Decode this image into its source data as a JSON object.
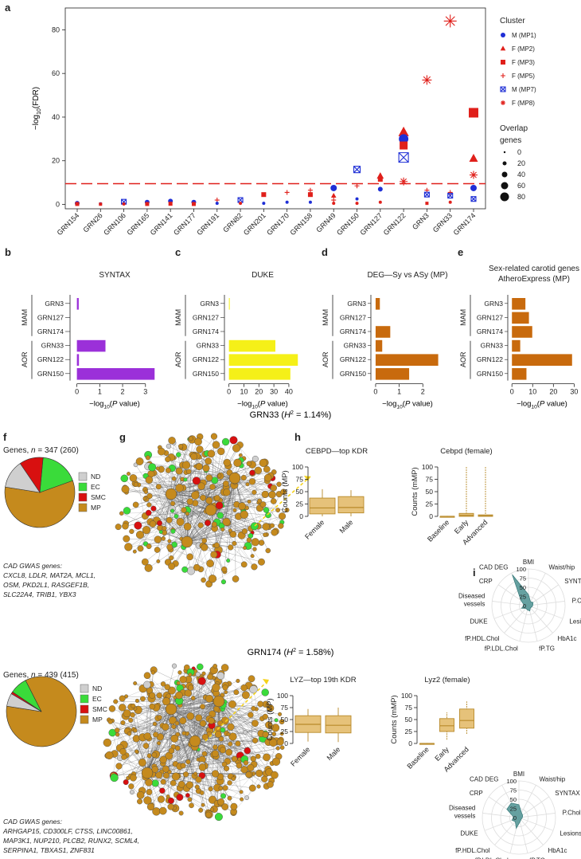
{
  "panel_labels": {
    "a": "a",
    "b": "b",
    "c": "c",
    "d": "d",
    "e": "e",
    "f": "f",
    "g": "g",
    "h": "h",
    "i": "i"
  },
  "colors": {
    "blue": "#1f2fd6",
    "red": "#e0201b",
    "purple": "#9b30d9",
    "yellow": "#f5f018",
    "orange": "#c86a0d",
    "mp": "#c58a1d",
    "ec": "#3adb3a",
    "smc": "#d81010",
    "nd": "#cfcfcf",
    "box": "#e6c27a",
    "boxline": "#b88a2a",
    "teal": "#5e9c9c",
    "grid": "#dddddd"
  },
  "chart_data": [
    {
      "type": "scatter",
      "panel": "a",
      "ylabel": "−log10(FDR)",
      "ylim": [
        -2,
        90
      ],
      "yticks": [
        0,
        20,
        40,
        60,
        80
      ],
      "threshold": 9.5,
      "categories": [
        "GRN154",
        "GRN26",
        "GRN106",
        "GRN165",
        "GRN141",
        "GRN177",
        "GRN191",
        "GRN82",
        "GRN201",
        "GRN170",
        "GRN158",
        "GRN49",
        "GRN150",
        "GRN127",
        "GRN122",
        "GRN3",
        "GRN33",
        "GRN174"
      ],
      "legend_title": "Cluster",
      "legend": [
        {
          "label": "M (MP1)",
          "shape": "circle",
          "color": "blue"
        },
        {
          "label": "F (MP2)",
          "shape": "triangle",
          "color": "red"
        },
        {
          "label": "F (MP3)",
          "shape": "square",
          "color": "red"
        },
        {
          "label": "F (MP5)",
          "shape": "plus",
          "color": "red"
        },
        {
          "label": "M (MP7)",
          "shape": "xsquare",
          "color": "blue"
        },
        {
          "label": "F (MP8)",
          "shape": "asterisk",
          "color": "red"
        }
      ],
      "size_legend_title": "Overlap genes",
      "size_legend": [
        {
          "label": "0",
          "r": 1.2
        },
        {
          "label": "20",
          "r": 2.5
        },
        {
          "label": "40",
          "r": 3.5
        },
        {
          "label": "60",
          "r": 4.5
        },
        {
          "label": "80",
          "r": 5.5
        }
      ],
      "points": [
        {
          "cat": 0,
          "shape": "circle",
          "color": "blue",
          "y": 0.5,
          "r": 3
        },
        {
          "cat": 0,
          "shape": "square",
          "color": "red",
          "y": 0.2,
          "r": 2.5
        },
        {
          "cat": 1,
          "shape": "circle",
          "color": "blue",
          "y": 0.3,
          "r": 2
        },
        {
          "cat": 1,
          "shape": "square",
          "color": "red",
          "y": 0.1,
          "r": 2
        },
        {
          "cat": 2,
          "shape": "xsquare",
          "color": "blue",
          "y": 1.2,
          "r": 3
        },
        {
          "cat": 2,
          "shape": "circle",
          "color": "red",
          "y": 0.2,
          "r": 2
        },
        {
          "cat": 3,
          "shape": "circle",
          "color": "blue",
          "y": 1.0,
          "r": 3
        },
        {
          "cat": 3,
          "shape": "square",
          "color": "red",
          "y": 0.2,
          "r": 2.5
        },
        {
          "cat": 4,
          "shape": "circle",
          "color": "blue",
          "y": 1.5,
          "r": 3
        },
        {
          "cat": 4,
          "shape": "square",
          "color": "red",
          "y": 0.3,
          "r": 2.5
        },
        {
          "cat": 5,
          "shape": "circle",
          "color": "blue",
          "y": 1.0,
          "r": 3
        },
        {
          "cat": 5,
          "shape": "square",
          "color": "red",
          "y": 0.2,
          "r": 2.5
        },
        {
          "cat": 6,
          "shape": "plus",
          "color": "red",
          "y": 2.0,
          "r": 3
        },
        {
          "cat": 6,
          "shape": "circle",
          "color": "blue",
          "y": 0.5,
          "r": 2
        },
        {
          "cat": 7,
          "shape": "xsquare",
          "color": "blue",
          "y": 2.0,
          "r": 3
        },
        {
          "cat": 7,
          "shape": "circle",
          "color": "red",
          "y": 0.5,
          "r": 2
        },
        {
          "cat": 8,
          "shape": "square",
          "color": "red",
          "y": 4.5,
          "r": 3
        },
        {
          "cat": 8,
          "shape": "circle",
          "color": "blue",
          "y": 0.5,
          "r": 2
        },
        {
          "cat": 9,
          "shape": "plus",
          "color": "red",
          "y": 5.5,
          "r": 3
        },
        {
          "cat": 9,
          "shape": "circle",
          "color": "blue",
          "y": 1.0,
          "r": 2
        },
        {
          "cat": 10,
          "shape": "plus",
          "color": "red",
          "y": 6.5,
          "r": 3
        },
        {
          "cat": 10,
          "shape": "square",
          "color": "red",
          "y": 4.5,
          "r": 3
        },
        {
          "cat": 10,
          "shape": "circle",
          "color": "blue",
          "y": 1.0,
          "r": 2
        },
        {
          "cat": 11,
          "shape": "circle",
          "color": "blue",
          "y": 7.5,
          "r": 4
        },
        {
          "cat": 11,
          "shape": "triangle",
          "color": "red",
          "y": 4.0,
          "r": 3
        },
        {
          "cat": 11,
          "shape": "plus",
          "color": "red",
          "y": 2.0,
          "r": 3
        },
        {
          "cat": 11,
          "shape": "circle",
          "color": "red",
          "y": 0.5,
          "r": 2
        },
        {
          "cat": 12,
          "shape": "xsquare",
          "color": "blue",
          "y": 16.0,
          "r": 4
        },
        {
          "cat": 12,
          "shape": "plus",
          "color": "red",
          "y": 8.5,
          "r": 3
        },
        {
          "cat": 12,
          "shape": "circle",
          "color": "blue",
          "y": 2.5,
          "r": 2
        },
        {
          "cat": 12,
          "shape": "circle",
          "color": "red",
          "y": 0.5,
          "r": 2
        },
        {
          "cat": 13,
          "shape": "triangle",
          "color": "red",
          "y": 13.0,
          "r": 4
        },
        {
          "cat": 13,
          "shape": "square",
          "color": "red",
          "y": 11.5,
          "r": 3
        },
        {
          "cat": 13,
          "shape": "circle",
          "color": "blue",
          "y": 7.0,
          "r": 3
        },
        {
          "cat": 13,
          "shape": "circle",
          "color": "red",
          "y": 1.0,
          "r": 2
        },
        {
          "cat": 14,
          "shape": "triangle",
          "color": "red",
          "y": 33.0,
          "r": 6
        },
        {
          "cat": 14,
          "shape": "circle",
          "color": "blue",
          "y": 30.0,
          "r": 6
        },
        {
          "cat": 14,
          "shape": "square",
          "color": "red",
          "y": 27.0,
          "r": 5
        },
        {
          "cat": 14,
          "shape": "xsquare",
          "color": "blue",
          "y": 21.5,
          "r": 6
        },
        {
          "cat": 14,
          "shape": "asterisk",
          "color": "red",
          "y": 10.5,
          "r": 5
        },
        {
          "cat": 15,
          "shape": "asterisk",
          "color": "red",
          "y": 57.0,
          "r": 6
        },
        {
          "cat": 15,
          "shape": "plus",
          "color": "red",
          "y": 6.5,
          "r": 3
        },
        {
          "cat": 15,
          "shape": "xsquare",
          "color": "blue",
          "y": 4.5,
          "r": 3
        },
        {
          "cat": 15,
          "shape": "square",
          "color": "red",
          "y": 0.5,
          "r": 2
        },
        {
          "cat": 16,
          "shape": "asterisk",
          "color": "red",
          "y": 84.0,
          "r": 8
        },
        {
          "cat": 16,
          "shape": "plus",
          "color": "red",
          "y": 5.5,
          "r": 3
        },
        {
          "cat": 16,
          "shape": "xsquare",
          "color": "blue",
          "y": 4.0,
          "r": 3
        },
        {
          "cat": 16,
          "shape": "circle",
          "color": "red",
          "y": 1.0,
          "r": 2
        },
        {
          "cat": 17,
          "shape": "square",
          "color": "red",
          "y": 42.0,
          "r": 6
        },
        {
          "cat": 17,
          "shape": "triangle",
          "color": "red",
          "y": 21.0,
          "r": 5
        },
        {
          "cat": 17,
          "shape": "asterisk",
          "color": "red",
          "y": 13.5,
          "r": 5
        },
        {
          "cat": 17,
          "shape": "circle",
          "color": "blue",
          "y": 7.5,
          "r": 4
        },
        {
          "cat": 17,
          "shape": "xsquare",
          "color": "blue",
          "y": 2.5,
          "r": 3
        }
      ]
    },
    {
      "type": "bar",
      "panel": "b",
      "title": "SYNTAX",
      "color": "purple",
      "xlabel": "−log10(P value)",
      "xlim": [
        -0.3,
        3.6
      ],
      "xticks": [
        0,
        1,
        2,
        3
      ],
      "values": [
        0.08,
        0,
        0,
        1.25,
        0.09,
        3.4
      ]
    },
    {
      "type": "bar",
      "panel": "c",
      "title": "DUKE",
      "color": "yellow",
      "xlabel": "−log10(P value)",
      "xlim": [
        -3,
        48
      ],
      "xticks": [
        0,
        10,
        20,
        30,
        40
      ],
      "values": [
        0.4,
        0,
        0,
        31,
        46,
        41
      ]
    },
    {
      "type": "bar",
      "panel": "d",
      "title": "DEG—Sy vs ASy (MP)",
      "color": "orange",
      "xlabel": "−log10(P value)",
      "xlim": [
        -0.2,
        2.9
      ],
      "xticks": [
        0,
        1,
        2
      ],
      "values": [
        0.18,
        0,
        0.62,
        0.28,
        2.65,
        1.42
      ]
    },
    {
      "type": "bar",
      "panel": "e",
      "title_lines": [
        "Sex-related carotid genes",
        "AtheroExpress (MP)"
      ],
      "color": "orange",
      "xlabel": "−log10(P value)",
      "xlim": [
        -2,
        31
      ],
      "xticks": [
        0,
        10,
        20,
        30
      ],
      "values": [
        6.5,
        8.2,
        9.8,
        4.0,
        29,
        7.0
      ]
    },
    {
      "type": "pie",
      "panel": "f-top",
      "title": "Genes, n = 347 (260)",
      "slices": [
        {
          "label": "MP",
          "value": 58
        },
        {
          "label": "EC",
          "value": 18
        },
        {
          "label": "SMC",
          "value": 11
        },
        {
          "label": "ND",
          "value": 13
        }
      ]
    },
    {
      "type": "pie",
      "panel": "f-bottom",
      "title": "Genes, n = 439 (415)",
      "slices": [
        {
          "label": "MP",
          "value": 85
        },
        {
          "label": "EC",
          "value": 8
        },
        {
          "label": "SMC",
          "value": 1
        },
        {
          "label": "ND",
          "value": 6
        }
      ]
    },
    {
      "type": "box",
      "panel": "h1",
      "title": "CEBPD—top KDR",
      "ylabel": "Counts (MP)",
      "ylim": [
        0,
        100
      ],
      "yticks": [
        0,
        25,
        50,
        75,
        100
      ],
      "categories": [
        "Female",
        "Male"
      ],
      "boxes": [
        {
          "min": 0,
          "q1": 5,
          "median": 17,
          "q3": 37,
          "max": 55
        },
        {
          "min": 0,
          "q1": 7,
          "median": 18,
          "q3": 40,
          "max": 53
        }
      ]
    },
    {
      "type": "box",
      "panel": "h2",
      "title": "Cebpd (female)",
      "ylabel": "Counts (mMP)",
      "ylim": [
        0,
        100
      ],
      "yticks": [
        0,
        25,
        50,
        75,
        100
      ],
      "categories": [
        "Baseline",
        "Early",
        "Advanced"
      ],
      "boxes": [
        {
          "min": 0,
          "q1": 0,
          "median": 0,
          "q3": 0,
          "max": 1
        },
        {
          "min": 0,
          "q1": 0,
          "median": 2,
          "q3": 6,
          "max": 100
        },
        {
          "min": 0,
          "q1": 0,
          "median": 1,
          "q3": 3,
          "max": 100
        }
      ]
    },
    {
      "type": "box",
      "panel": "h3",
      "title": "LYZ—top 19th KDR",
      "ylabel": "Counts (MP)",
      "ylim": [
        0,
        100
      ],
      "yticks": [
        0,
        25,
        50,
        75,
        100
      ],
      "categories": [
        "Female",
        "Male"
      ],
      "boxes": [
        {
          "min": 4,
          "q1": 23,
          "median": 40,
          "q3": 58,
          "max": 72
        },
        {
          "min": 3,
          "q1": 22,
          "median": 38,
          "q3": 58,
          "max": 75
        }
      ]
    },
    {
      "type": "box",
      "panel": "h4",
      "title": "Lyz2 (female)",
      "ylabel": "Counts (mMP)",
      "ylim": [
        0,
        100
      ],
      "yticks": [
        0,
        25,
        50,
        75,
        100
      ],
      "categories": [
        "Baseline",
        "Early",
        "Advanced"
      ],
      "boxes": [
        {
          "min": 0,
          "q1": 0,
          "median": 0,
          "q3": 0,
          "max": 1
        },
        {
          "min": 8,
          "q1": 25,
          "median": 37,
          "q3": 52,
          "max": 65
        },
        {
          "min": 20,
          "q1": 32,
          "median": 48,
          "q3": 72,
          "max": 88
        }
      ]
    },
    {
      "type": "radar",
      "panel": "i1",
      "axes": [
        "BMI",
        "Waist/hip",
        "SYNTAX",
        "P.Chol",
        "Lesions",
        "HbA1c",
        "fP.TG",
        "fP.LDL.Chol",
        "fP.HDL.Chol",
        "DUKE",
        "Diseased vessels",
        "CRP",
        "CAD DEG"
      ],
      "ticks": [
        "0",
        "25",
        "50",
        "75",
        "100"
      ],
      "values": [
        30,
        12,
        15,
        12,
        10,
        8,
        15,
        12,
        10,
        20,
        12,
        25,
        95
      ]
    },
    {
      "type": "radar",
      "panel": "i2",
      "axes": [
        "BMI",
        "Waist/hip",
        "SYNTAX",
        "P.Chol",
        "Lesions",
        "HbA1c",
        "fP.TG",
        "fP.LDL.Chol",
        "fP.HDL.Chol",
        "DUKE",
        "Diseased vessels",
        "CRP",
        "CAD DEG"
      ],
      "ticks": [
        "0",
        "25",
        "50",
        "75",
        "100"
      ],
      "values": [
        35,
        15,
        12,
        10,
        8,
        8,
        12,
        30,
        15,
        20,
        15,
        40,
        45
      ]
    }
  ],
  "bar_rows": [
    "GRN3",
    "GRN127",
    "GRN174",
    "GRN33",
    "GRN122",
    "GRN150"
  ],
  "bar_groups": [
    "MAM",
    "AOR"
  ],
  "pie_legend": [
    "ND",
    "EC",
    "SMC",
    "MP"
  ],
  "grn33_title_pre": "GRN33 (",
  "grn33_h": "H",
  "grn33_h_sup": "2",
  "grn33_title_post": " = 1.14%)",
  "grn174_title_pre": "GRN174 (",
  "grn174_h": "H",
  "grn174_h_sup": "2",
  "grn174_title_post": " = 1.58%)",
  "gwas_top_title": "CAD GWAS genes:",
  "gwas_top_lines": [
    "CXCL8, LDLR, MAT2A, MCL1,",
    "OSM, PKD2L1, RASGEF1B,",
    "SLC22A4, TRIB1, YBX3"
  ],
  "gwas_bottom_title": "CAD GWAS genes:",
  "gwas_bottom_lines": [
    "ARHGAP15, CD300LF, CTSS, LINC00861,",
    "MAP3K1, NUP210, PLCB2, RUNX2, SCML4,",
    "SERPINA1, TBXAS1, ZNF831"
  ]
}
